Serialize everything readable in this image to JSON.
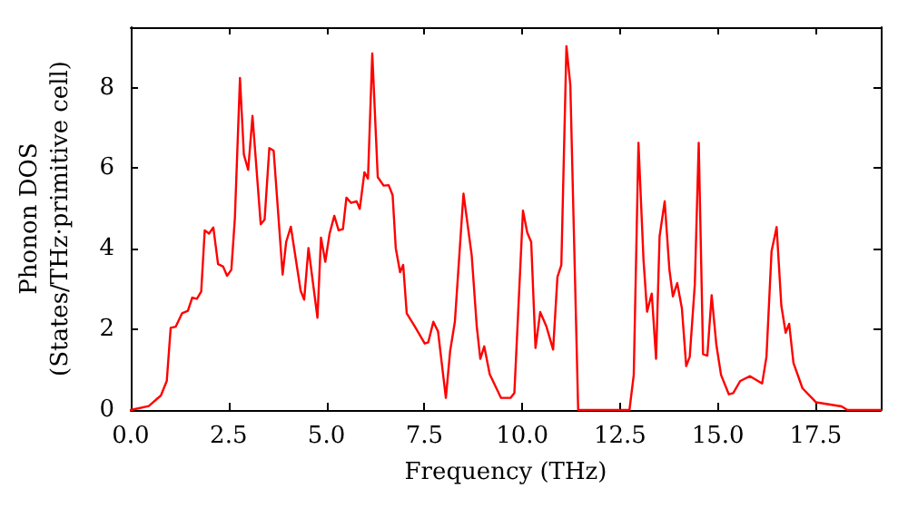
{
  "chart_data": {
    "type": "line",
    "xlabel": "Frequency (THz)",
    "ylabel": "Phonon DOS\n(States/THz·primitive cell)",
    "xlim": [
      0,
      19.16
    ],
    "ylim": [
      0,
      9.5
    ],
    "xticks": [
      {
        "value": 0,
        "label": "0.0"
      },
      {
        "value": 2.5,
        "label": "2.5"
      },
      {
        "value": 5,
        "label": "5.0"
      },
      {
        "value": 7.5,
        "label": "7.5"
      },
      {
        "value": 10,
        "label": "10.0"
      },
      {
        "value": 12.5,
        "label": "12.5"
      },
      {
        "value": 15,
        "label": "15.0"
      },
      {
        "value": 17.5,
        "label": "17.5"
      }
    ],
    "yticks": [
      0,
      2,
      4,
      6,
      8
    ],
    "grid": false,
    "marker": "none",
    "line_style": "solid",
    "series": [
      {
        "color": "#ff0000",
        "x": [
          0,
          0.46,
          0.77,
          0.92,
          1.02,
          1.15,
          1.31,
          1.46,
          1.57,
          1.69,
          1.8,
          1.89,
          2.0,
          2.11,
          2.23,
          2.36,
          2.46,
          2.57,
          2.66,
          2.79,
          2.89,
          3.0,
          3.11,
          3.32,
          3.42,
          3.54,
          3.65,
          3.88,
          3.97,
          4.09,
          4.34,
          4.43,
          4.54,
          4.77,
          4.86,
          4.97,
          5.08,
          5.2,
          5.31,
          5.42,
          5.51,
          5.63,
          5.77,
          5.85,
          5.97,
          6.06,
          6.17,
          6.31,
          6.46,
          6.59,
          6.69,
          6.77,
          6.88,
          6.96,
          7.05,
          7.26,
          7.51,
          7.6,
          7.73,
          7.85,
          8.05,
          8.16,
          8.28,
          8.5,
          8.71,
          8.84,
          8.93,
          9.03,
          9.17,
          9.46,
          9.7,
          9.8,
          10.02,
          10.13,
          10.23,
          10.34,
          10.46,
          10.62,
          10.79,
          10.9,
          11.0,
          11.13,
          11.23,
          11.43,
          12.46,
          12.74,
          12.85,
          12.97,
          13.1,
          13.19,
          13.31,
          13.42,
          13.51,
          13.64,
          13.76,
          13.85,
          13.96,
          14.08,
          14.19,
          14.28,
          14.41,
          14.51,
          14.62,
          14.73,
          14.84,
          14.96,
          15.08,
          15.28,
          15.39,
          15.57,
          15.82,
          16.13,
          16.24,
          16.37,
          16.5,
          16.62,
          16.73,
          16.82,
          16.93,
          17.16,
          17.51,
          18.16,
          18.31,
          19.16
        ],
        "values": [
          0,
          0.1,
          0.36,
          0.72,
          2.04,
          2.07,
          2.4,
          2.46,
          2.79,
          2.76,
          2.94,
          4.46,
          4.38,
          4.53,
          3.62,
          3.56,
          3.33,
          3.48,
          4.76,
          8.24,
          6.34,
          5.96,
          7.3,
          4.61,
          4.73,
          6.5,
          6.44,
          3.36,
          4.17,
          4.55,
          2.96,
          2.74,
          4.02,
          2.29,
          4.28,
          3.68,
          4.38,
          4.82,
          4.46,
          4.49,
          5.27,
          5.14,
          5.18,
          4.99,
          5.9,
          5.74,
          8.85,
          5.78,
          5.57,
          5.58,
          5.33,
          4.02,
          3.42,
          3.6,
          2.4,
          2.07,
          1.65,
          1.68,
          2.19,
          1.95,
          0.3,
          1.47,
          2.19,
          5.37,
          3.84,
          2.07,
          1.27,
          1.58,
          0.89,
          0.3,
          0.3,
          0.42,
          4.95,
          4.4,
          4.17,
          1.54,
          2.43,
          2.07,
          1.5,
          3.3,
          3.6,
          9.03,
          8.06,
          0,
          0,
          0,
          0.87,
          6.63,
          3.71,
          2.44,
          2.89,
          1.27,
          4.31,
          5.18,
          3.49,
          2.82,
          3.15,
          2.52,
          1.09,
          1.32,
          3.12,
          6.63,
          1.39,
          1.35,
          2.85,
          1.62,
          0.87,
          0.39,
          0.42,
          0.72,
          0.84,
          0.66,
          1.32,
          3.94,
          4.54,
          2.59,
          1.92,
          2.14,
          1.17,
          0.54,
          0.19,
          0.09,
          0,
          0
        ]
      }
    ]
  }
}
